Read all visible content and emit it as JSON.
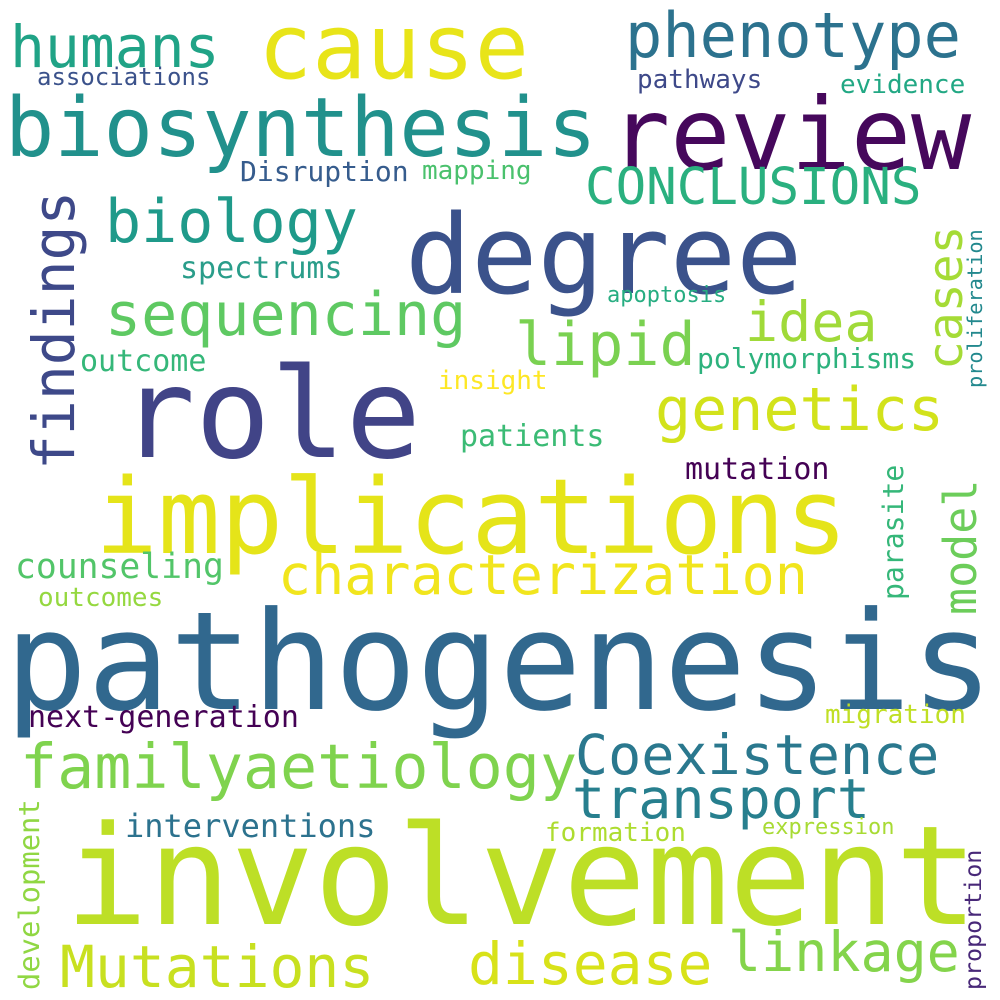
{
  "words": [
    {
      "text": "pathogenesis",
      "color": "#31688e"
    },
    {
      "text": "involvement",
      "color": "#bddf26"
    },
    {
      "text": "role",
      "color": "#414487"
    },
    {
      "text": "implications",
      "color": "#e5e419"
    },
    {
      "text": "degree",
      "color": "#3b528b"
    },
    {
      "text": "review",
      "color": "#46085c"
    },
    {
      "text": "cause",
      "color": "#e8e419"
    },
    {
      "text": "biosynthesis",
      "color": "#21918c"
    },
    {
      "text": "phenotype",
      "color": "#2c728e"
    },
    {
      "text": "humans",
      "color": "#20a386"
    },
    {
      "text": "CONCLUSIONS",
      "color": "#2ab07f"
    },
    {
      "text": "biology",
      "color": "#1f9a8a"
    },
    {
      "text": "findings",
      "color": "#3e4989"
    },
    {
      "text": "sequencing",
      "color": "#5ec962"
    },
    {
      "text": "lipid",
      "color": "#7ad151"
    },
    {
      "text": "idea",
      "color": "#a0da39"
    },
    {
      "text": "cases",
      "color": "#a5db36"
    },
    {
      "text": "genetics",
      "color": "#d2e21b"
    },
    {
      "text": "characterization",
      "color": "#f1e51d"
    },
    {
      "text": "model",
      "color": "#6ccd5a"
    },
    {
      "text": "familyaetiology",
      "color": "#7fd34e"
    },
    {
      "text": "Coexistence",
      "color": "#2a788e"
    },
    {
      "text": "transport",
      "color": "#277f8e"
    },
    {
      "text": "Mutations",
      "color": "#c8e020"
    },
    {
      "text": "disease",
      "color": "#d8e219"
    },
    {
      "text": "linkage",
      "color": "#84d44b"
    },
    {
      "text": "associations",
      "color": "#3b528b"
    },
    {
      "text": "pathways",
      "color": "#3e4989"
    },
    {
      "text": "evidence",
      "color": "#22a884"
    },
    {
      "text": "Disruption",
      "color": "#365c8d"
    },
    {
      "text": "mapping",
      "color": "#4ac16d"
    },
    {
      "text": "spectrums",
      "color": "#2a9d8a"
    },
    {
      "text": "apoptosis",
      "color": "#26ad81"
    },
    {
      "text": "outcome",
      "color": "#35b779"
    },
    {
      "text": "polymorphisms",
      "color": "#2db27d"
    },
    {
      "text": "proliferation",
      "color": "#23898e"
    },
    {
      "text": "insight",
      "color": "#fde725"
    },
    {
      "text": "patients",
      "color": "#3bbb75"
    },
    {
      "text": "mutation",
      "color": "#440154"
    },
    {
      "text": "parasite",
      "color": "#35b779"
    },
    {
      "text": "counseling",
      "color": "#52c569"
    },
    {
      "text": "outcomes",
      "color": "#95d840"
    },
    {
      "text": "next-generation",
      "color": "#440154"
    },
    {
      "text": "migration",
      "color": "#c0df25"
    },
    {
      "text": "interventions",
      "color": "#2c728e"
    },
    {
      "text": "formation",
      "color": "#addc30"
    },
    {
      "text": "expression",
      "color": "#a8db34"
    },
    {
      "text": "development",
      "color": "#90d743"
    },
    {
      "text": "proportion",
      "color": "#482878"
    }
  ]
}
